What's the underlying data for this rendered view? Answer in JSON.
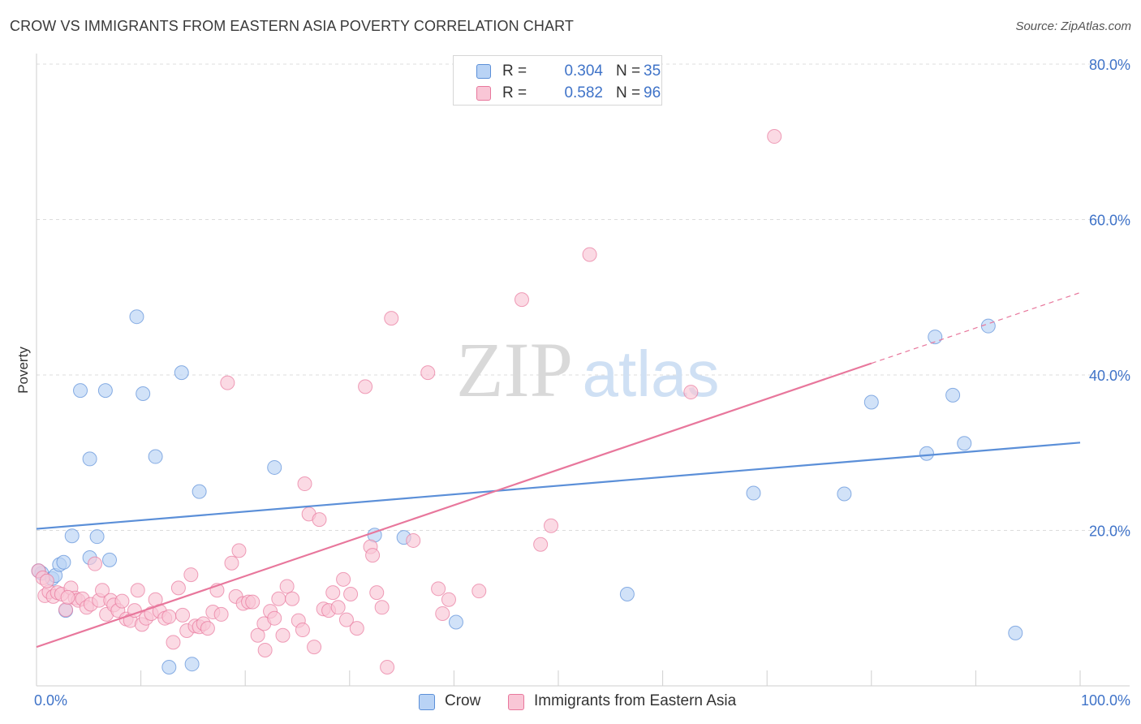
{
  "title": "CROW VS IMMIGRANTS FROM EASTERN ASIA POVERTY CORRELATION CHART",
  "source": "Source: ZipAtlas.com",
  "watermark": {
    "zip": "ZIP",
    "atlas": "atlas"
  },
  "legend": {
    "r_label": "R =",
    "n_label": "N =",
    "items": [
      {
        "name": "Crow",
        "r": "0.304",
        "n": "35",
        "fill": "#b9d3f5",
        "stroke": "#5b8fd8"
      },
      {
        "name": "Immigrants from Eastern Asia",
        "r": "0.582",
        "n": "96",
        "fill": "#f9c6d6",
        "stroke": "#e8779c"
      }
    ]
  },
  "chart_data": {
    "type": "scatter",
    "title": "CROW VS IMMIGRANTS FROM EASTERN ASIA POVERTY CORRELATION CHART",
    "xlabel": "",
    "ylabel": "Poverty",
    "xlim": [
      0,
      100
    ],
    "ylim": [
      0,
      80
    ],
    "x_tick_labels": [
      "0.0%",
      "100.0%"
    ],
    "y_ticks": [
      20,
      40,
      60,
      80
    ],
    "y_tick_labels": [
      "20.0%",
      "40.0%",
      "60.0%",
      "80.0%"
    ],
    "grid": "horizontal dashed",
    "legend_position": "top-center",
    "series": [
      {
        "name": "Crow",
        "color": "#5b8fd8",
        "fill": "#b9d3f5",
        "trend": {
          "x": [
            0,
            100
          ],
          "y": [
            20.2,
            31.3
          ]
        },
        "points": [
          [
            0.5,
            14.5
          ],
          [
            1.5,
            13.8
          ],
          [
            1.8,
            14.2
          ],
          [
            2.2,
            15.6
          ],
          [
            2.6,
            15.9
          ],
          [
            2.8,
            9.7
          ],
          [
            3.4,
            19.3
          ],
          [
            4.2,
            38.0
          ],
          [
            5.1,
            29.2
          ],
          [
            5.1,
            16.5
          ],
          [
            5.8,
            19.2
          ],
          [
            6.6,
            38.0
          ],
          [
            7.0,
            16.2
          ],
          [
            9.6,
            47.5
          ],
          [
            10.2,
            37.6
          ],
          [
            11.4,
            29.5
          ],
          [
            12.7,
            2.4
          ],
          [
            13.9,
            40.3
          ],
          [
            14.9,
            2.8
          ],
          [
            15.6,
            25.0
          ],
          [
            22.8,
            28.1
          ],
          [
            32.4,
            19.4
          ],
          [
            35.2,
            19.1
          ],
          [
            40.2,
            8.2
          ],
          [
            56.6,
            11.8
          ],
          [
            68.7,
            24.8
          ],
          [
            77.4,
            24.7
          ],
          [
            80.0,
            36.5
          ],
          [
            85.3,
            29.9
          ],
          [
            86.1,
            44.9
          ],
          [
            87.8,
            37.4
          ],
          [
            88.9,
            31.2
          ],
          [
            91.2,
            46.3
          ],
          [
            93.8,
            6.8
          ],
          [
            0.2,
            14.8
          ]
        ]
      },
      {
        "name": "Immigrants from Eastern Asia",
        "color": "#e8779c",
        "fill": "#f9c6d6",
        "trend": {
          "x": [
            0,
            80
          ],
          "y": [
            5.0,
            41.5
          ]
        },
        "trend_dashed": {
          "x": [
            80,
            100
          ],
          "y": [
            41.5,
            50.6
          ]
        },
        "points": [
          [
            0.2,
            14.8
          ],
          [
            0.6,
            13.9
          ],
          [
            0.8,
            11.6
          ],
          [
            1.2,
            12.1
          ],
          [
            1.6,
            11.5
          ],
          [
            2.0,
            12.0
          ],
          [
            2.4,
            11.8
          ],
          [
            2.8,
            9.8
          ],
          [
            3.3,
            12.6
          ],
          [
            3.7,
            11.3
          ],
          [
            4.0,
            11.0
          ],
          [
            4.4,
            11.2
          ],
          [
            4.8,
            10.1
          ],
          [
            5.2,
            10.5
          ],
          [
            5.6,
            15.7
          ],
          [
            6.0,
            11.0
          ],
          [
            6.3,
            12.3
          ],
          [
            6.7,
            9.2
          ],
          [
            7.1,
            11.0
          ],
          [
            7.4,
            10.4
          ],
          [
            7.8,
            9.7
          ],
          [
            8.2,
            10.9
          ],
          [
            8.6,
            8.6
          ],
          [
            9.0,
            8.4
          ],
          [
            9.4,
            9.7
          ],
          [
            9.7,
            12.3
          ],
          [
            10.1,
            7.9
          ],
          [
            10.5,
            8.7
          ],
          [
            11.0,
            9.3
          ],
          [
            11.4,
            11.1
          ],
          [
            11.8,
            9.6
          ],
          [
            12.3,
            8.7
          ],
          [
            12.7,
            8.9
          ],
          [
            13.1,
            5.6
          ],
          [
            13.6,
            12.6
          ],
          [
            14.0,
            9.1
          ],
          [
            14.4,
            7.1
          ],
          [
            14.8,
            14.3
          ],
          [
            15.2,
            7.7
          ],
          [
            15.6,
            7.6
          ],
          [
            16.0,
            8.0
          ],
          [
            16.4,
            7.4
          ],
          [
            16.9,
            9.5
          ],
          [
            17.3,
            12.3
          ],
          [
            17.7,
            9.2
          ],
          [
            18.3,
            39.0
          ],
          [
            18.7,
            15.8
          ],
          [
            19.1,
            11.5
          ],
          [
            19.4,
            17.4
          ],
          [
            19.8,
            10.6
          ],
          [
            20.3,
            10.8
          ],
          [
            20.7,
            10.8
          ],
          [
            21.2,
            6.5
          ],
          [
            21.8,
            8.0
          ],
          [
            21.9,
            4.6
          ],
          [
            22.4,
            9.6
          ],
          [
            22.8,
            8.7
          ],
          [
            23.2,
            11.2
          ],
          [
            23.6,
            6.5
          ],
          [
            24.0,
            12.8
          ],
          [
            24.5,
            11.2
          ],
          [
            25.1,
            8.4
          ],
          [
            25.5,
            7.2
          ],
          [
            25.7,
            26.0
          ],
          [
            26.1,
            22.1
          ],
          [
            26.6,
            5.0
          ],
          [
            27.1,
            21.4
          ],
          [
            27.5,
            9.9
          ],
          [
            28.0,
            9.7
          ],
          [
            28.4,
            12.0
          ],
          [
            28.9,
            10.1
          ],
          [
            29.4,
            13.7
          ],
          [
            29.7,
            8.5
          ],
          [
            30.1,
            11.8
          ],
          [
            30.7,
            7.4
          ],
          [
            31.5,
            38.5
          ],
          [
            32.0,
            17.9
          ],
          [
            32.2,
            16.8
          ],
          [
            32.6,
            12.0
          ],
          [
            33.1,
            10.1
          ],
          [
            33.6,
            2.4
          ],
          [
            34.0,
            47.3
          ],
          [
            36.1,
            18.7
          ],
          [
            37.5,
            40.3
          ],
          [
            38.5,
            12.5
          ],
          [
            38.9,
            9.3
          ],
          [
            39.5,
            11.1
          ],
          [
            42.4,
            12.2
          ],
          [
            46.5,
            49.7
          ],
          [
            48.3,
            18.2
          ],
          [
            49.3,
            20.6
          ],
          [
            53.0,
            55.5
          ],
          [
            62.7,
            37.8
          ],
          [
            70.7,
            70.7
          ],
          [
            1.0,
            13.5
          ],
          [
            3.0,
            11.4
          ]
        ]
      }
    ]
  }
}
